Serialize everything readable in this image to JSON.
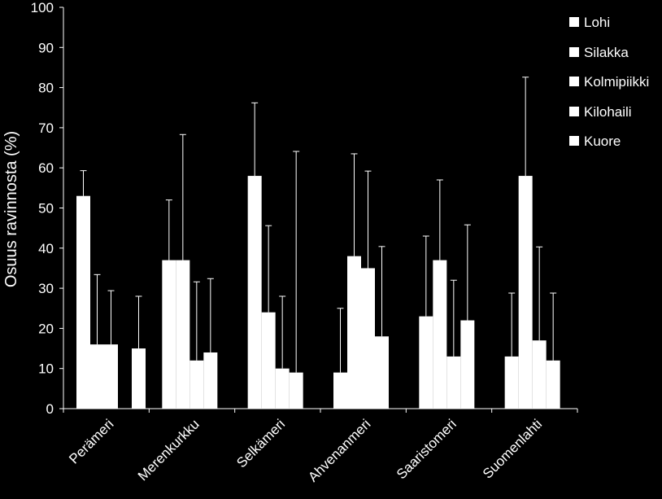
{
  "chart_data": {
    "type": "bar",
    "title": "",
    "xlabel": "",
    "ylabel": "Osuus ravinnosta (%)",
    "ylim": [
      0,
      100
    ],
    "yticks": [
      0,
      10,
      20,
      30,
      40,
      50,
      60,
      70,
      80,
      90,
      100
    ],
    "categories": [
      "Perämeri",
      "Merenkurkku",
      "Selkämeri",
      "Ahvenanmeri",
      "Saaristomeri",
      "Suomenlahti"
    ],
    "series": [
      {
        "name": "Lohi",
        "values": [
          53,
          37,
          58,
          9,
          23,
          13
        ],
        "error_upper": [
          59.3,
          52,
          76.2,
          25,
          43,
          28.8
        ]
      },
      {
        "name": "Silakka",
        "values": [
          16,
          37,
          24,
          38,
          37,
          58
        ],
        "error_upper": [
          33.4,
          68.3,
          45.6,
          63.5,
          57,
          82.6
        ]
      },
      {
        "name": "Kolmipiikki",
        "values": [
          16,
          12,
          10,
          35,
          13,
          17
        ],
        "error_upper": [
          29.4,
          31.6,
          28,
          59.2,
          32,
          40.3
        ]
      },
      {
        "name": "Kilohaili",
        "values": [
          0,
          14,
          9,
          18,
          22,
          12
        ],
        "error_upper": [
          0,
          32.4,
          64.1,
          40.4,
          45.8,
          28.8
        ]
      },
      {
        "name": "Kuore",
        "values": [
          15,
          0,
          0,
          0,
          0,
          0
        ],
        "error_upper": [
          28,
          0,
          0,
          0,
          0,
          0
        ]
      }
    ],
    "legend_position": "right",
    "grid": false,
    "colors": {
      "background": "#000000",
      "bars": "#ffffff",
      "axes": "#ffffff",
      "text": "#ffffff"
    }
  }
}
